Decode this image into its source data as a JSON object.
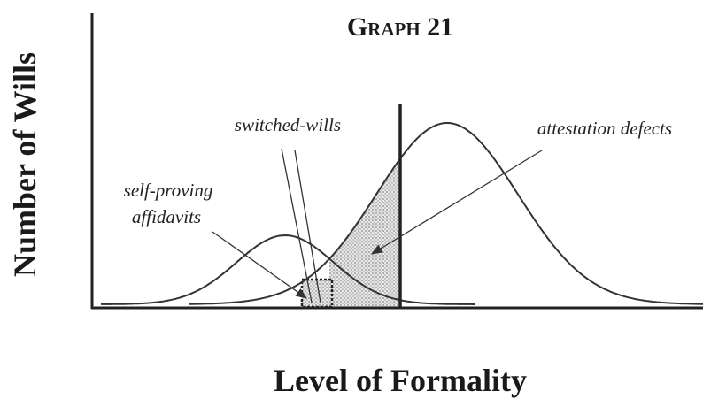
{
  "title": "Graph 21",
  "y_axis_label": "Number of Wills",
  "x_axis_label": "Level of Formality",
  "annotations": [
    "self-proving",
    "affidavits",
    "switched-wills",
    "attestation defects"
  ]
}
